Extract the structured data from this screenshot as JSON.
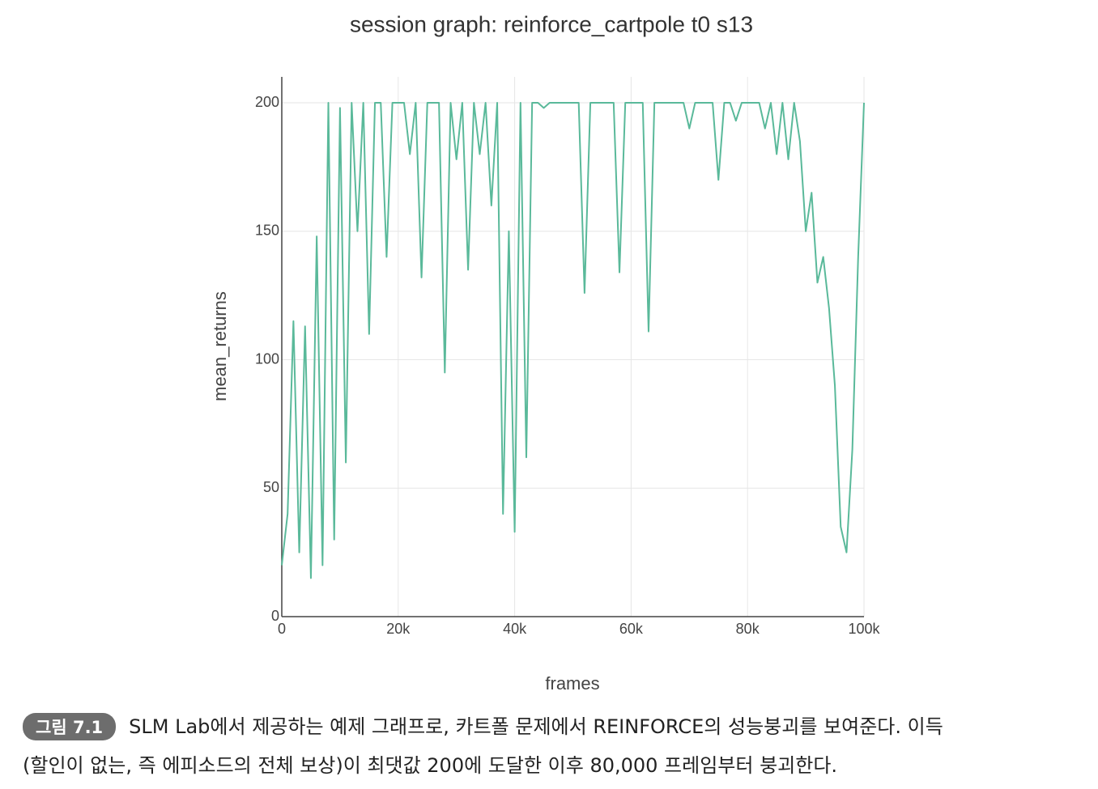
{
  "chart_data": {
    "type": "line",
    "title": "session graph: reinforce_cartpole t0 s13",
    "xlabel": "frames",
    "ylabel": "mean_returns",
    "x": [
      0,
      1000,
      2000,
      3000,
      4000,
      5000,
      6000,
      7000,
      8000,
      9000,
      10000,
      11000,
      12000,
      13000,
      14000,
      15000,
      16000,
      17000,
      18000,
      19000,
      20000,
      21000,
      22000,
      23000,
      24000,
      25000,
      26000,
      27000,
      28000,
      29000,
      30000,
      31000,
      32000,
      33000,
      34000,
      35000,
      36000,
      37000,
      38000,
      39000,
      40000,
      41000,
      42000,
      43000,
      44000,
      45000,
      46000,
      47000,
      48000,
      49000,
      50000,
      51000,
      52000,
      53000,
      54000,
      55000,
      56000,
      57000,
      58000,
      59000,
      60000,
      61000,
      62000,
      63000,
      64000,
      65000,
      66000,
      67000,
      68000,
      69000,
      70000,
      71000,
      72000,
      73000,
      74000,
      75000,
      76000,
      77000,
      78000,
      79000,
      80000,
      81000,
      82000,
      83000,
      84000,
      85000,
      86000,
      87000,
      88000,
      89000,
      90000,
      91000,
      92000,
      93000,
      94000,
      95000,
      96000,
      97000,
      98000,
      99000,
      100000
    ],
    "series": [
      {
        "name": "mean_returns",
        "color": "#5ab99a",
        "values": [
          20,
          40,
          115,
          25,
          113,
          15,
          148,
          20,
          200,
          30,
          198,
          60,
          200,
          150,
          200,
          110,
          200,
          200,
          140,
          200,
          200,
          200,
          180,
          200,
          132,
          200,
          200,
          200,
          95,
          200,
          178,
          200,
          135,
          200,
          180,
          200,
          160,
          200,
          40,
          150,
          33,
          200,
          62,
          200,
          200,
          198,
          200,
          200,
          200,
          200,
          200,
          200,
          126,
          200,
          200,
          200,
          200,
          200,
          134,
          200,
          200,
          200,
          200,
          111,
          200,
          200,
          200,
          200,
          200,
          200,
          190,
          200,
          200,
          200,
          200,
          170,
          200,
          200,
          193,
          200,
          200,
          200,
          200,
          190,
          200,
          180,
          200,
          178,
          200,
          185,
          150,
          165,
          130,
          140,
          120,
          90,
          35,
          25,
          65,
          140,
          200
        ]
      }
    ],
    "xlim": [
      0,
      100000
    ],
    "ylim": [
      0,
      200
    ],
    "xticks": [
      0,
      {
        "value": 20000,
        "label": "20k"
      },
      {
        "value": 40000,
        "label": "40k"
      },
      {
        "value": 60000,
        "label": "60k"
      },
      {
        "value": 80000,
        "label": "80k"
      },
      {
        "value": 100000,
        "label": "100k"
      }
    ],
    "yticks": [
      0,
      50,
      100,
      150,
      200
    ],
    "grid": true
  },
  "caption": {
    "label": "그림 7.1",
    "lines": [
      "SLM Lab에서 제공하는 예제 그래프로, 카트폴 문제에서 REINFORCE의 성능붕괴를 보여준다. 이득",
      "(할인이 없는, 즉 에피소드의 전체 보상)이 최댓값 200에 도달한 이후 80,000 프레임부터 붕괴한다."
    ]
  }
}
